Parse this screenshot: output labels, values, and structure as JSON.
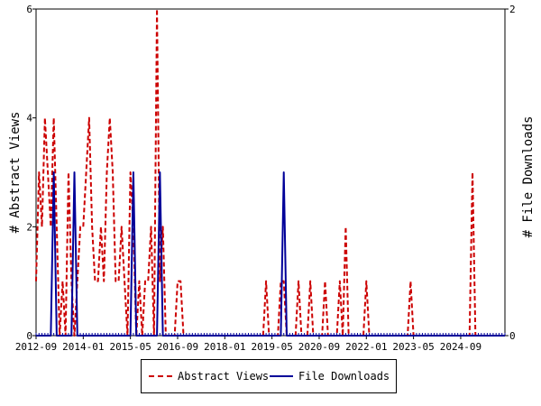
{
  "chart_data": {
    "type": "line",
    "ylabel": "# Abstract Views",
    "y2label": "# File Downloads",
    "ylim": [
      0,
      6
    ],
    "y2lim": [
      0,
      2
    ],
    "yticks": [
      "0",
      "2",
      "4",
      "6"
    ],
    "y2ticks": [
      "0",
      "2"
    ],
    "xlim": [
      "2012-09",
      "2025-12"
    ],
    "xticks": [
      "2012-09",
      "2014-01",
      "2015-05",
      "2016-09",
      "2018-01",
      "2019-05",
      "2020-09",
      "2022-01",
      "2023-05",
      "2024-09"
    ],
    "series": [
      {
        "name": "Abstract Views",
        "axis": "left",
        "color": "#cc0000",
        "style": "dashed",
        "x": [
          "2012-09",
          "2012-10",
          "2012-11",
          "2012-12",
          "2013-01",
          "2013-02",
          "2013-03",
          "2013-04",
          "2013-05",
          "2013-06",
          "2013-07",
          "2013-08",
          "2013-09",
          "2013-10",
          "2013-11",
          "2013-12",
          "2014-01",
          "2014-02",
          "2014-03",
          "2014-04",
          "2014-05",
          "2014-06",
          "2014-07",
          "2014-08",
          "2014-09",
          "2014-10",
          "2014-11",
          "2014-12",
          "2015-01",
          "2015-02",
          "2015-03",
          "2015-04",
          "2015-05",
          "2015-06",
          "2015-07",
          "2015-08",
          "2015-09",
          "2015-10",
          "2015-11",
          "2015-12",
          "2016-01",
          "2016-02",
          "2016-03",
          "2016-04",
          "2016-05",
          "2016-06",
          "2016-07",
          "2016-08",
          "2016-09",
          "2016-10",
          "2016-11",
          "2016-12",
          "2017-01",
          "2017-02",
          "2017-03",
          "2017-04",
          "2017-05",
          "2017-06",
          "2017-07",
          "2017-08",
          "2017-09",
          "2017-10",
          "2017-11",
          "2017-12",
          "2018-01",
          "2018-02",
          "2018-03",
          "2018-04",
          "2018-05",
          "2018-06",
          "2018-07",
          "2018-08",
          "2018-09",
          "2018-10",
          "2018-11",
          "2018-12",
          "2019-01",
          "2019-02",
          "2019-03",
          "2019-04",
          "2019-05",
          "2019-06",
          "2019-07",
          "2019-08",
          "2019-09",
          "2019-10",
          "2019-11",
          "2019-12",
          "2020-01",
          "2020-02",
          "2020-03",
          "2020-04",
          "2020-05",
          "2020-06",
          "2020-07",
          "2020-08",
          "2020-09",
          "2020-10",
          "2020-11",
          "2020-12",
          "2021-01",
          "2021-02",
          "2021-03",
          "2021-04",
          "2021-05",
          "2021-06",
          "2021-07",
          "2021-08",
          "2021-09",
          "2021-10",
          "2021-11",
          "2021-12",
          "2022-01",
          "2022-02",
          "2022-03",
          "2022-04",
          "2022-05",
          "2022-06",
          "2022-07",
          "2022-08",
          "2022-09",
          "2022-10",
          "2022-11",
          "2022-12",
          "2023-01",
          "2023-02",
          "2023-03",
          "2023-04",
          "2023-05",
          "2023-06",
          "2023-07",
          "2023-08",
          "2023-09",
          "2023-10",
          "2023-11",
          "2023-12",
          "2024-01",
          "2024-02",
          "2024-03",
          "2024-04",
          "2024-05",
          "2024-06",
          "2024-07",
          "2024-08",
          "2024-09",
          "2024-10",
          "2024-11",
          "2024-12",
          "2025-01",
          "2025-02",
          "2025-03",
          "2025-04",
          "2025-05",
          "2025-06",
          "2025-07",
          "2025-08",
          "2025-09",
          "2025-10",
          "2025-11",
          "2025-12"
        ],
        "values": [
          1,
          3,
          2,
          4,
          3,
          2,
          4,
          2,
          0,
          1,
          0,
          3,
          1,
          0,
          1,
          2,
          2,
          3,
          4,
          2,
          1,
          1,
          2,
          1,
          3,
          4,
          3,
          1,
          1,
          2,
          1,
          0,
          3,
          2,
          0,
          1,
          0,
          1,
          1,
          2,
          0,
          6,
          1,
          2,
          0,
          0,
          0,
          0,
          1,
          1,
          0,
          0,
          0,
          0,
          0,
          0,
          0,
          0,
          0,
          0,
          0,
          0,
          0,
          0,
          0,
          0,
          0,
          0,
          0,
          0,
          0,
          0,
          0,
          0,
          0,
          0,
          0,
          0,
          1,
          0,
          0,
          0,
          0,
          1,
          1,
          0,
          0,
          0,
          0,
          1,
          0,
          0,
          0,
          1,
          0,
          0,
          0,
          0,
          1,
          0,
          0,
          0,
          0,
          1,
          0,
          2,
          0,
          0,
          0,
          0,
          0,
          0,
          1,
          0,
          0,
          0,
          0,
          0,
          0,
          0,
          0,
          0,
          0,
          0,
          0,
          0,
          0,
          1,
          0,
          0,
          0,
          0,
          0,
          0,
          0,
          0,
          0,
          0,
          0,
          0,
          0,
          0,
          0,
          0,
          0,
          0,
          0,
          0,
          3,
          0,
          0,
          0,
          0,
          0,
          0,
          0,
          0,
          0,
          0,
          0
        ]
      },
      {
        "name": "File Downloads",
        "axis": "right",
        "color": "#000099",
        "style": "solid",
        "x": [
          "2012-09",
          "2012-10",
          "2012-11",
          "2012-12",
          "2013-01",
          "2013-02",
          "2013-03",
          "2013-04",
          "2013-05",
          "2013-06",
          "2013-07",
          "2013-08",
          "2013-09",
          "2013-10",
          "2013-11",
          "2013-12",
          "2014-01",
          "2014-02",
          "2014-03",
          "2014-04",
          "2014-05",
          "2014-06",
          "2014-07",
          "2014-08",
          "2014-09",
          "2014-10",
          "2014-11",
          "2014-12",
          "2015-01",
          "2015-02",
          "2015-03",
          "2015-04",
          "2015-05",
          "2015-06",
          "2015-07",
          "2015-08",
          "2015-09",
          "2015-10",
          "2015-11",
          "2015-12",
          "2016-01",
          "2016-02",
          "2016-03",
          "2016-04",
          "2016-05",
          "2016-06",
          "2016-07",
          "2016-08",
          "2016-09",
          "2016-10",
          "2016-11",
          "2016-12",
          "2017-01",
          "2017-02",
          "2017-03",
          "2017-04",
          "2017-05",
          "2017-06",
          "2017-07",
          "2017-08",
          "2017-09",
          "2017-10",
          "2017-11",
          "2017-12",
          "2018-01",
          "2018-02",
          "2018-03",
          "2018-04",
          "2018-05",
          "2018-06",
          "2018-07",
          "2018-08",
          "2018-09",
          "2018-10",
          "2018-11",
          "2018-12",
          "2019-01",
          "2019-02",
          "2019-03",
          "2019-04",
          "2019-05",
          "2019-06",
          "2019-07",
          "2019-08",
          "2019-09",
          "2019-10",
          "2019-11",
          "2019-12",
          "2020-01",
          "2020-02",
          "2020-03",
          "2020-04",
          "2020-05",
          "2020-06",
          "2020-07",
          "2020-08",
          "2020-09",
          "2020-10",
          "2020-11",
          "2020-12",
          "2021-01",
          "2021-02",
          "2021-03",
          "2021-04",
          "2021-05",
          "2021-06",
          "2021-07",
          "2021-08",
          "2021-09",
          "2021-10",
          "2021-11",
          "2021-12",
          "2022-01",
          "2022-02",
          "2022-03",
          "2022-04",
          "2022-05",
          "2022-06",
          "2022-07",
          "2022-08",
          "2022-09",
          "2022-10",
          "2022-11",
          "2022-12",
          "2023-01",
          "2023-02",
          "2023-03",
          "2023-04",
          "2023-05",
          "2023-06",
          "2023-07",
          "2023-08",
          "2023-09",
          "2023-10",
          "2023-11",
          "2023-12",
          "2024-01",
          "2024-02",
          "2024-03",
          "2024-04",
          "2024-05",
          "2024-06",
          "2024-07",
          "2024-08",
          "2024-09",
          "2024-10",
          "2024-11",
          "2024-12",
          "2025-01",
          "2025-02",
          "2025-03",
          "2025-04",
          "2025-05",
          "2025-06",
          "2025-07",
          "2025-08",
          "2025-09",
          "2025-10",
          "2025-11",
          "2025-12"
        ],
        "values": [
          0,
          0,
          0,
          0,
          0,
          0,
          1,
          0,
          0,
          0,
          0,
          0,
          0,
          1,
          0,
          0,
          0,
          0,
          0,
          0,
          0,
          0,
          0,
          0,
          0,
          0,
          0,
          0,
          0,
          0,
          0,
          0,
          0,
          1,
          0,
          0,
          0,
          0,
          0,
          0,
          0,
          0,
          1,
          0,
          0,
          0,
          0,
          0,
          0,
          0,
          0,
          0,
          0,
          0,
          0,
          0,
          0,
          0,
          0,
          0,
          0,
          0,
          0,
          0,
          0,
          0,
          0,
          0,
          0,
          0,
          0,
          0,
          0,
          0,
          0,
          0,
          0,
          0,
          0,
          0,
          0,
          0,
          0,
          0,
          1,
          0,
          0,
          0,
          0,
          0,
          0,
          0,
          0,
          0,
          0,
          0,
          0,
          0,
          0,
          0,
          0,
          0,
          0,
          0,
          0,
          0,
          0,
          0,
          0,
          0,
          0,
          0,
          0,
          0,
          0,
          0,
          0,
          0,
          0,
          0,
          0,
          0,
          0,
          0,
          0,
          0,
          0,
          0,
          0,
          0,
          0,
          0,
          0,
          0,
          0,
          0,
          0,
          0,
          0,
          0,
          0,
          0,
          0,
          0,
          0,
          0,
          0,
          0,
          0,
          0,
          0,
          0,
          0,
          0,
          0,
          0,
          0,
          0,
          0,
          0
        ]
      }
    ]
  }
}
